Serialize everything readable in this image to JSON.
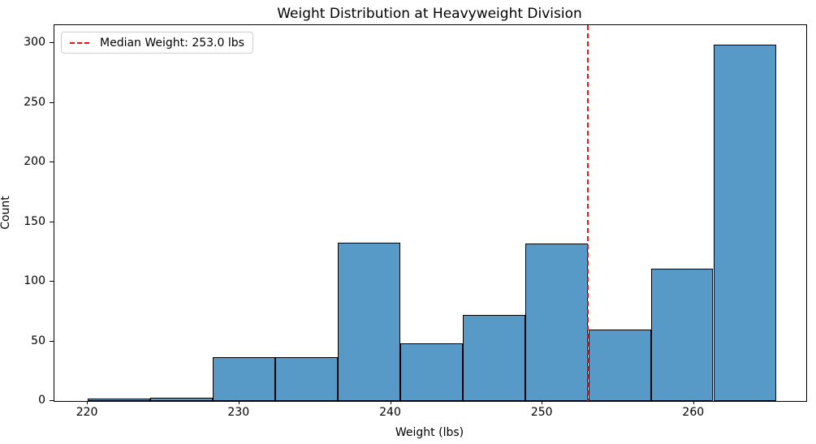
{
  "figure": {
    "title": "Weight Distribution at Heavyweight Division",
    "xlabel": "Weight (lbs)",
    "ylabel": "Count"
  },
  "legend": {
    "label": "Median Weight: 253.0 lbs"
  },
  "colors": {
    "bar_fill": "#5799C7",
    "bar_edge": "#000000",
    "median_line": "#EE1111",
    "legend_border": "#CCCCCC",
    "axis": "#000000",
    "background": "#FFFFFF"
  },
  "chart_data": {
    "type": "bar",
    "subtype": "histogram",
    "title": "Weight Distribution at Heavyweight Division",
    "xlabel": "Weight (lbs)",
    "ylabel": "Count",
    "bin_edges": [
      220.0,
      224.13,
      228.25,
      232.38,
      236.51,
      240.64,
      244.76,
      248.89,
      253.02,
      257.15,
      261.27,
      265.4
    ],
    "counts": [
      2,
      3,
      37,
      37,
      133,
      48,
      72,
      132,
      60,
      111,
      299
    ],
    "median_line": {
      "x": 253.0,
      "style": "dashed",
      "color": "red",
      "label": "Median Weight: 253.0 lbs"
    },
    "xticks": [
      220,
      230,
      240,
      250,
      260
    ],
    "yticks": [
      0,
      50,
      100,
      150,
      200,
      250,
      300
    ],
    "xlim": [
      217.8,
      267.4
    ],
    "ylim": [
      0,
      315
    ],
    "grid": false,
    "legend_position": "upper left"
  }
}
